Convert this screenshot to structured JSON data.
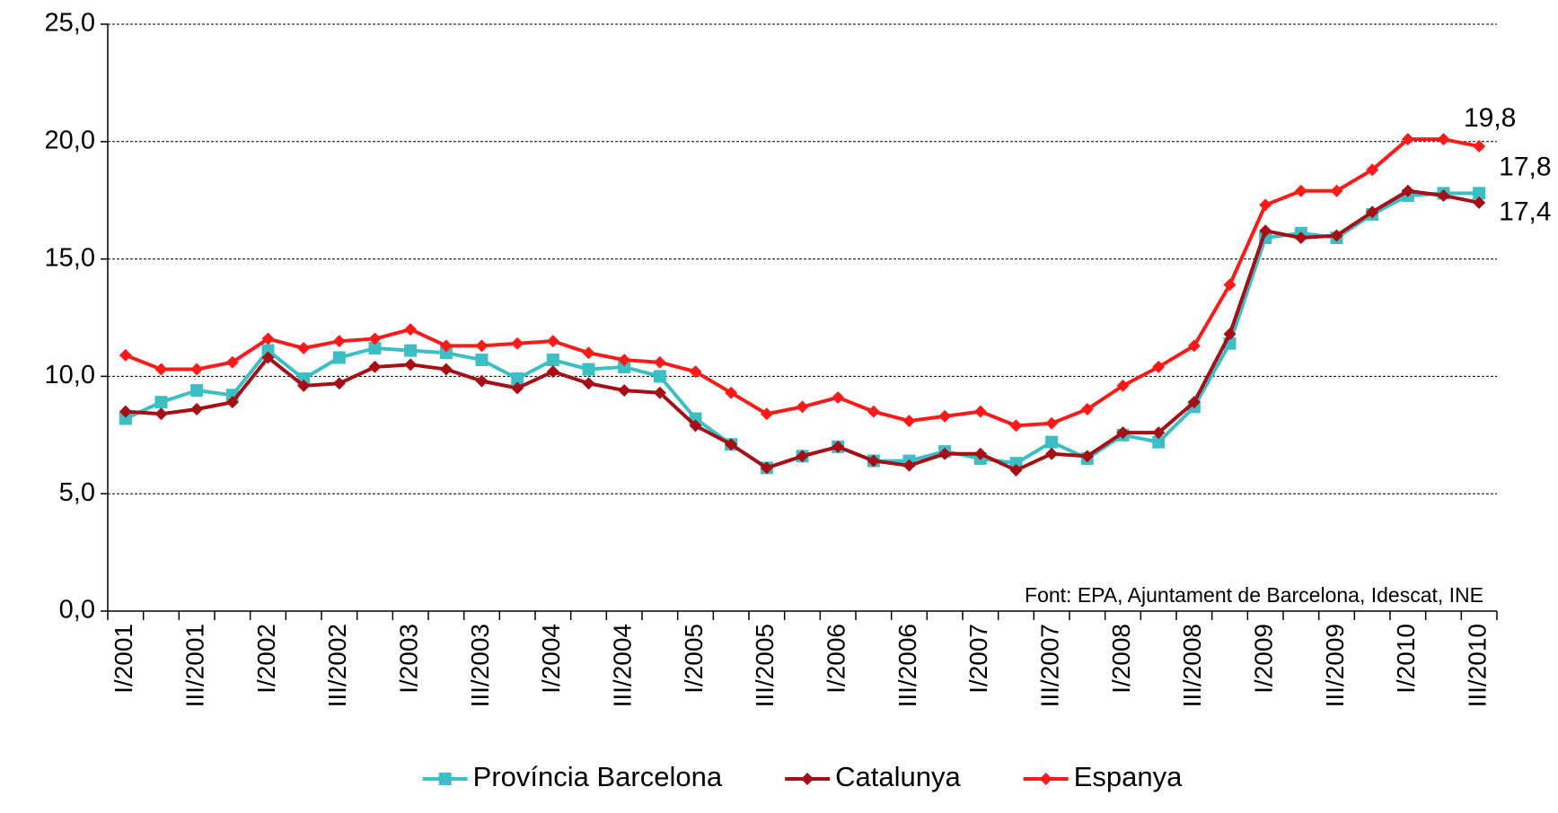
{
  "chart_data": {
    "type": "line",
    "categories": [
      "I/2001",
      null,
      "III/2001",
      null,
      "I/2002",
      null,
      "III/2002",
      null,
      "I/2003",
      null,
      "III/2003",
      null,
      "I/2004",
      null,
      "III/2004",
      null,
      "I/2005",
      null,
      "III/2005",
      null,
      "I/2006",
      null,
      "III/2006",
      null,
      "I/2007",
      null,
      "III/2007",
      null,
      "I/2008",
      null,
      "III/2008",
      null,
      "I/2009",
      null,
      "III/2009",
      null,
      "I/2010",
      null,
      "III/2010"
    ],
    "series": [
      {
        "name": "Província Barcelona",
        "color": "#3cbfc4",
        "marker": "square",
        "values": [
          8.2,
          8.9,
          9.4,
          9.2,
          11.1,
          9.9,
          10.8,
          11.2,
          11.1,
          11.0,
          10.7,
          9.9,
          10.7,
          10.3,
          10.4,
          10.0,
          8.2,
          7.1,
          6.1,
          6.6,
          7.0,
          6.4,
          6.4,
          6.8,
          6.5,
          6.3,
          7.2,
          6.5,
          7.5,
          7.2,
          8.7,
          11.4,
          15.9,
          16.1,
          15.9,
          16.9,
          17.7,
          17.8,
          17.8
        ],
        "value_labels": [
          null,
          null,
          null,
          null,
          null,
          null,
          null,
          null,
          null,
          null,
          null,
          null,
          null,
          null,
          null,
          null,
          null,
          null,
          null,
          null,
          null,
          null,
          null,
          null,
          null,
          null,
          null,
          null,
          null,
          null,
          null,
          null,
          null,
          null,
          null,
          null,
          null,
          null,
          "17,8"
        ]
      },
      {
        "name": "Catalunya",
        "color": "#a50f15",
        "marker": "diamond",
        "values": [
          8.5,
          8.4,
          8.6,
          8.9,
          10.8,
          9.6,
          9.7,
          10.4,
          10.5,
          10.3,
          9.8,
          9.5,
          10.2,
          9.7,
          9.4,
          9.3,
          7.9,
          7.1,
          6.1,
          6.6,
          7.0,
          6.4,
          6.2,
          6.7,
          6.7,
          6.0,
          6.7,
          6.6,
          7.6,
          7.6,
          8.9,
          11.8,
          16.2,
          15.9,
          16.0,
          17.0,
          17.9,
          17.7,
          17.4
        ],
        "value_labels": [
          null,
          null,
          null,
          null,
          null,
          null,
          null,
          null,
          null,
          null,
          null,
          null,
          null,
          null,
          null,
          null,
          null,
          null,
          null,
          null,
          null,
          null,
          null,
          null,
          null,
          null,
          null,
          null,
          null,
          null,
          null,
          null,
          null,
          null,
          null,
          null,
          null,
          null,
          "17,4"
        ]
      },
      {
        "name": "Espanya",
        "color": "#ff1a1a",
        "marker": "diamond",
        "values": [
          10.9,
          10.3,
          10.3,
          10.6,
          11.6,
          11.2,
          11.5,
          11.6,
          12.0,
          11.3,
          11.3,
          11.4,
          11.5,
          11.0,
          10.7,
          10.6,
          10.2,
          9.3,
          8.4,
          8.7,
          9.1,
          8.5,
          8.1,
          8.3,
          8.5,
          7.9,
          8.0,
          8.6,
          9.6,
          10.4,
          11.3,
          13.9,
          17.3,
          17.9,
          17.9,
          18.8,
          20.1,
          20.1,
          19.8
        ],
        "value_labels": [
          null,
          null,
          null,
          null,
          null,
          null,
          null,
          null,
          null,
          null,
          null,
          null,
          null,
          null,
          null,
          null,
          null,
          null,
          null,
          null,
          null,
          null,
          null,
          null,
          null,
          null,
          null,
          null,
          null,
          null,
          null,
          null,
          null,
          null,
          null,
          null,
          null,
          null,
          "19,8"
        ]
      }
    ],
    "ylim": [
      0,
      25
    ],
    "yticks": [
      {
        "value": 0,
        "label": "0,0"
      },
      {
        "value": 5,
        "label": "5,0"
      },
      {
        "value": 10,
        "label": "10,0"
      },
      {
        "value": 15,
        "label": "15,0"
      },
      {
        "value": 20,
        "label": "20,0"
      },
      {
        "value": 25,
        "label": "25,0"
      }
    ],
    "grid": true,
    "legend": "bottom",
    "annotation": "Font: EPA, Ajuntament de Barcelona, Idescat, INE"
  }
}
